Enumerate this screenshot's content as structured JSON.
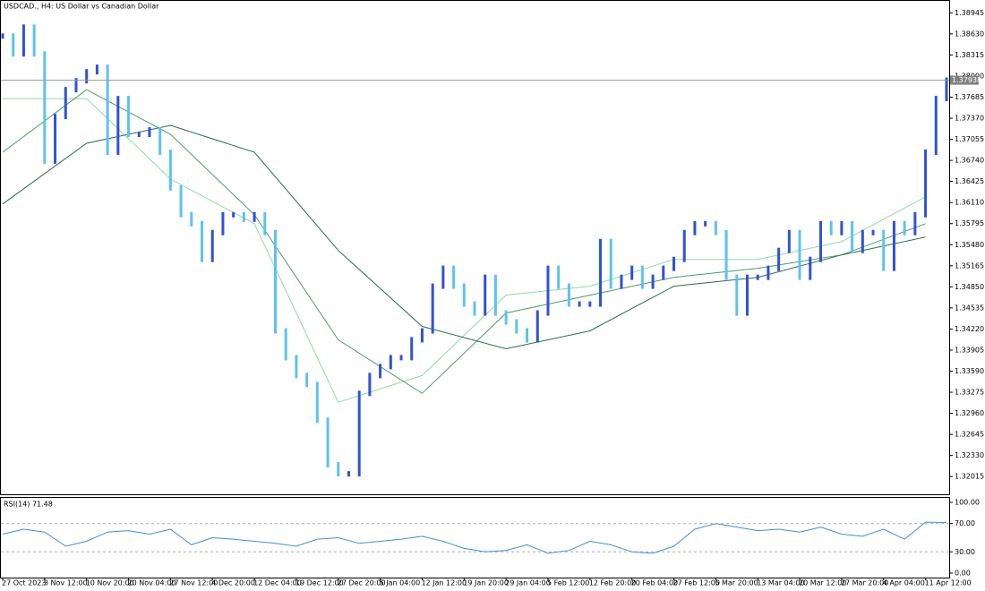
{
  "chart_data": {
    "type": "bar",
    "title": "USDCAD., H4:  US Dollar vs Canadian Dollar",
    "categories": [
      "27 Oct 2023",
      null,
      null,
      null,
      "3 Nov 12:00",
      null,
      null,
      null,
      "10 Nov 20:00",
      null,
      null,
      null,
      "20 Nov 04:00",
      null,
      null,
      null,
      "27 Nov 12:00",
      null,
      null,
      null,
      "4 Dec 20:00",
      null,
      null,
      null,
      "12 Dec 04:00",
      null,
      null,
      null,
      "19 Dec 12:00",
      null,
      null,
      null,
      "27 Dec 20:00",
      null,
      null,
      null,
      "5 Jan 04:00",
      null,
      null,
      null,
      "12 Jan 12:00",
      null,
      null,
      null,
      "19 Jan 20:00",
      null,
      null,
      null,
      "29 Jan 04:00",
      null,
      null,
      null,
      "5 Feb 12:00",
      null,
      null,
      null,
      "12 Feb 20:00",
      null,
      null,
      null,
      "20 Feb 04:00",
      null,
      null,
      null,
      "27 Feb 12:00",
      null,
      null,
      null,
      "5 Mar 20:00",
      null,
      null,
      null,
      "13 Mar 04:00",
      null,
      null,
      null,
      "20 Mar 12:00",
      null,
      null,
      null,
      "27 Mar 20:00",
      null,
      null,
      null,
      "4 Apr 04:00",
      null,
      null,
      null,
      "11 Apr 12:00",
      null,
      null
    ],
    "series": [
      {
        "name": "USDCAD",
        "up_color": "#2f52d8",
        "down_color": "#5cc3ee",
        "values": [
          1.38598,
          1.38331,
          1.38731,
          1.38331,
          1.36729,
          1.37396,
          1.37797,
          1.3793,
          1.38064,
          1.38131,
          1.36862,
          1.37663,
          1.37129,
          1.37129,
          1.37196,
          1.36862,
          1.36328,
          1.35928,
          1.35794,
          1.3526,
          1.35661,
          1.35928,
          1.35928,
          1.35861,
          1.35928,
          1.35661,
          1.34192,
          1.33792,
          1.33525,
          1.33391,
          1.32857,
          1.3219,
          1.32056,
          1.32056,
          1.33258,
          1.33525,
          1.33658,
          1.33792,
          1.33792,
          1.34059,
          1.34192,
          1.3486,
          1.35127,
          1.3486,
          1.34593,
          1.34459,
          1.34993,
          1.34459,
          1.34326,
          1.34192,
          1.34059,
          1.34459,
          1.35127,
          1.3486,
          1.34593,
          1.34593,
          1.34593,
          1.35527,
          1.3486,
          1.34993,
          1.35127,
          1.3486,
          1.34993,
          1.35127,
          1.3526,
          1.35661,
          1.35794,
          1.35794,
          1.35661,
          1.34993,
          1.34459,
          1.34993,
          1.34993,
          1.35127,
          1.35394,
          1.35661,
          1.34993,
          1.3526,
          1.35794,
          1.35661,
          1.35794,
          1.35394,
          1.35661,
          1.35661,
          1.35127,
          1.35794,
          1.35661,
          1.35928,
          1.36862,
          1.37663,
          1.37938
        ]
      }
    ],
    "moving_averages": [
      {
        "color": "#8fd9a8",
        "values": [
          1.37663,
          1.37663,
          1.36462,
          1.35794,
          1.33124,
          1.33525,
          1.34726,
          1.3486,
          1.3526,
          1.3526,
          1.35527,
          1.36195
        ]
      },
      {
        "color": "#4f9a6a",
        "values": [
          1.36862,
          1.37797,
          1.37129,
          1.35928,
          1.34059,
          1.33258,
          1.34459,
          1.34726,
          1.34993,
          1.35127,
          1.35327,
          1.35794
        ]
      },
      {
        "color": "#2e6b4a",
        "values": [
          1.36088,
          1.36996,
          1.37263,
          1.36862,
          1.35394,
          1.34259,
          1.33925,
          1.34192,
          1.3486,
          1.34993,
          1.35327,
          1.35594
        ]
      }
    ],
    "ylim": [
      1.3175,
      1.3911
    ],
    "yticks": [
      {
        "value": 1.38945,
        "label": "1.38945"
      },
      {
        "value": 1.3863,
        "label": "1.38630"
      },
      {
        "value": 1.38315,
        "label": "1.38315"
      },
      {
        "value": 1.38,
        "label": "1.38000"
      },
      {
        "value": 1.37685,
        "label": "1.37685"
      },
      {
        "value": 1.3737,
        "label": "1.37370"
      },
      {
        "value": 1.37055,
        "label": "1.37055"
      },
      {
        "value": 1.3674,
        "label": "1.36740"
      },
      {
        "value": 1.36425,
        "label": "1.36425"
      },
      {
        "value": 1.3611,
        "label": "1.36110"
      },
      {
        "value": 1.35795,
        "label": "1.35795"
      },
      {
        "value": 1.3548,
        "label": "1.35480"
      },
      {
        "value": 1.35165,
        "label": "1.35165"
      },
      {
        "value": 1.3485,
        "label": "1.34850"
      },
      {
        "value": 1.34535,
        "label": "1.34535"
      },
      {
        "value": 1.3422,
        "label": "1.34220"
      },
      {
        "value": 1.33905,
        "label": "1.33905"
      },
      {
        "value": 1.3359,
        "label": "1.33590"
      },
      {
        "value": 1.33275,
        "label": "1.33275"
      },
      {
        "value": 1.3296,
        "label": "1.32960"
      },
      {
        "value": 1.32645,
        "label": "1.32645"
      },
      {
        "value": 1.3233,
        "label": "1.32330"
      },
      {
        "value": 1.32015,
        "label": "1.32015"
      }
    ],
    "current_price": {
      "value": 1.37938,
      "label": "1.37938"
    },
    "rsi": {
      "title": "RSI(14) 71.48",
      "color": "#3b8fe0",
      "values": [
        55,
        62,
        58,
        38,
        45,
        58,
        60,
        55,
        62,
        40,
        50,
        48,
        45,
        42,
        38,
        48,
        50,
        42,
        45,
        48,
        52,
        45,
        35,
        30,
        32,
        40,
        28,
        32,
        45,
        40,
        30,
        28,
        38,
        62,
        70,
        65,
        60,
        62,
        58,
        65,
        55,
        52,
        62,
        48,
        72,
        71.48
      ],
      "ylim": [
        0,
        100
      ],
      "yticks": [
        {
          "value": 100,
          "label": "100.00"
        },
        {
          "value": 70,
          "label": "70.00"
        },
        {
          "value": 30,
          "label": "30.00"
        },
        {
          "value": 0,
          "label": "0.00"
        }
      ]
    }
  }
}
